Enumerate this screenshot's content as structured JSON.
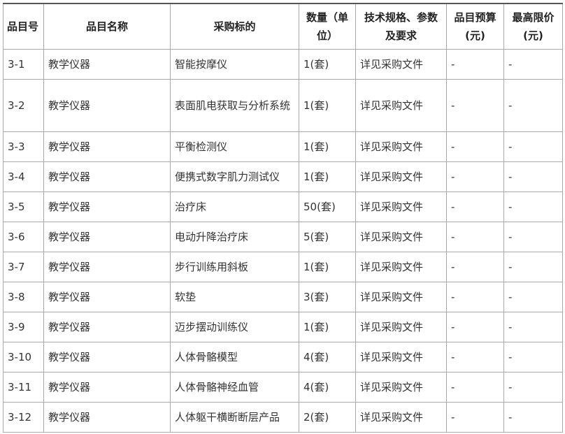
{
  "table": {
    "headers": [
      "品目号",
      "品目名称",
      "采购标的",
      "数量（单位）",
      "技术规格、参数及要求",
      "品目预算(元)",
      "最高限价(元)"
    ],
    "rows": [
      [
        "3-1",
        "教学仪器",
        "智能按摩仪",
        "1(套)",
        "详见采购文件",
        "-",
        "-"
      ],
      [
        "3-2",
        "教学仪器",
        "表面肌电获取与分析系统",
        "1(套)",
        "详见采购文件",
        "-",
        "-"
      ],
      [
        "3-3",
        "教学仪器",
        "平衡检测仪",
        "1(套)",
        "详见采购文件",
        "-",
        "-"
      ],
      [
        "3-4",
        "教学仪器",
        "便携式数字肌力测试仪",
        "1(套)",
        "详见采购文件",
        "-",
        "-"
      ],
      [
        "3-5",
        "教学仪器",
        "治疗床",
        "50(套)",
        "详见采购文件",
        "-",
        "-"
      ],
      [
        "3-6",
        "教学仪器",
        "电动升降治疗床",
        "5(套)",
        "详见采购文件",
        "-",
        "-"
      ],
      [
        "3-7",
        "教学仪器",
        "步行训练用斜板",
        "1(套)",
        "详见采购文件",
        "-",
        "-"
      ],
      [
        "3-8",
        "教学仪器",
        "软垫",
        "3(套)",
        "详见采购文件",
        "-",
        "-"
      ],
      [
        "3-9",
        "教学仪器",
        "迈步摆动训练仪",
        "1(套)",
        "详见采购文件",
        "-",
        "-"
      ],
      [
        "3-10",
        "教学仪器",
        "人体骨骼模型",
        "4(套)",
        "详见采购文件",
        "-",
        "-"
      ],
      [
        "3-11",
        "教学仪器",
        "人体骨骼神经血管",
        "4(套)",
        "详见采购文件",
        "-",
        "-"
      ],
      [
        "3-12",
        "教学仪器",
        "人体躯干横断断层产品",
        "2(套)",
        "详见采购文件",
        "-",
        "-"
      ]
    ]
  }
}
